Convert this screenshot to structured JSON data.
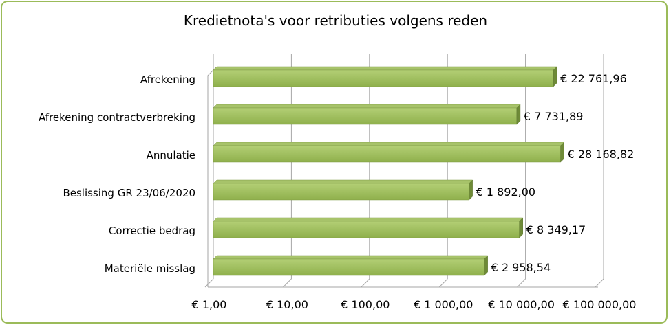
{
  "chart_data": {
    "type": "bar",
    "orientation": "horizontal",
    "title": "Kredietnota's voor retributies volgens reden",
    "categories": [
      "Afrekening",
      "Afrekening contractverbreking",
      "Annulatie",
      "Beslissing GR 23/06/2020",
      "Correctie bedrag",
      "Materiële misslag"
    ],
    "values": [
      22761.96,
      7731.89,
      28168.82,
      1892.0,
      8349.17,
      2958.54
    ],
    "value_labels": [
      "€ 22 761,96",
      "€ 7 731,89",
      "€ 28 168,82",
      "€ 1 892,00",
      "€ 8 349,17",
      "€ 2 958,54"
    ],
    "x_scale": "log",
    "xlim": [
      1,
      100000
    ],
    "x_ticks": [
      1,
      10,
      100,
      1000,
      10000,
      100000
    ],
    "x_tick_labels": [
      "€  1,00",
      "€  10,00",
      "€  100,00",
      "€ 1 000,00",
      "€ 10 000,00",
      "€ 100 000,00"
    ],
    "grid": true,
    "legend": false,
    "bar_color": "#9bbb59",
    "frame_color": "#9bbb59"
  }
}
